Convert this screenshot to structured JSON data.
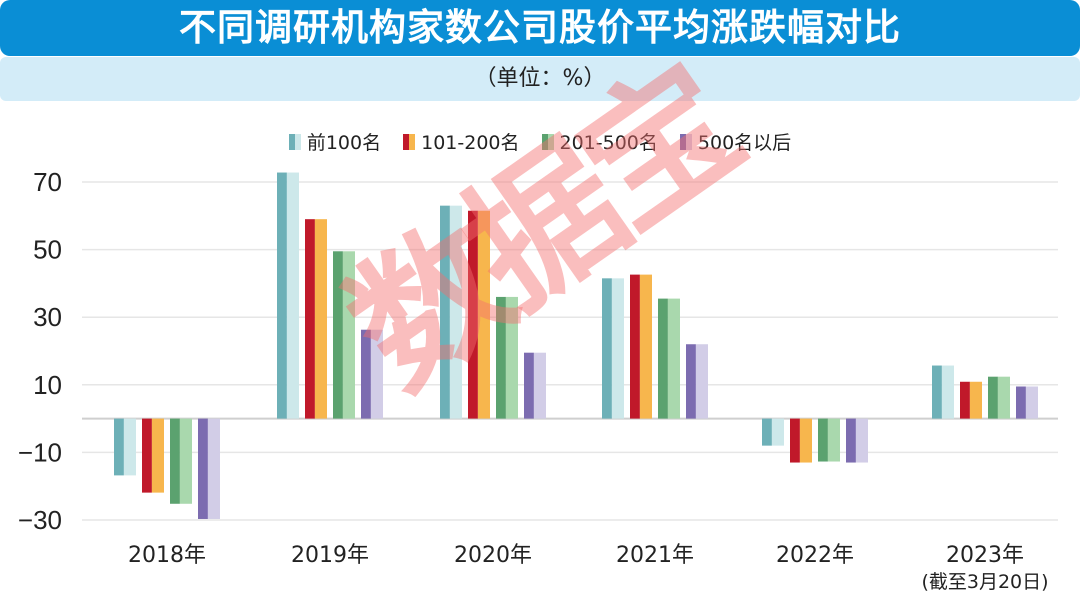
{
  "header": {
    "title": "不同调研机构家数公司股价平均涨跌幅对比",
    "unit": "（单位：%）"
  },
  "watermark": "数据宝",
  "chart_data": {
    "type": "bar",
    "title": "不同调研机构家数公司股价平均涨跌幅对比",
    "subtitle": "（单位：%）",
    "categories": [
      "2018年",
      "2019年",
      "2020年",
      "2021年",
      "2022年",
      "2023年"
    ],
    "category_notes": [
      "",
      "",
      "",
      "",
      "",
      "(截至3月20日)"
    ],
    "series": [
      {
        "name": "前100名",
        "values": [
          -16.8,
          72.8,
          63.0,
          41.5,
          -8.0,
          15.7
        ],
        "colors": [
          "#6db0b7",
          "#cde8ea"
        ]
      },
      {
        "name": "101-200名",
        "values": [
          -21.9,
          59.0,
          61.5,
          42.6,
          -13.0,
          10.9
        ],
        "colors": [
          "#c0192a",
          "#f7b64d"
        ]
      },
      {
        "name": "201-500名",
        "values": [
          -25.2,
          49.5,
          36.0,
          35.5,
          -12.7,
          12.4
        ],
        "colors": [
          "#5ba26f",
          "#a9d8ad"
        ]
      },
      {
        "name": "500名以后",
        "values": [
          -29.7,
          26.3,
          19.5,
          22.0,
          -13.0,
          9.5
        ],
        "colors": [
          "#7c6cb0",
          "#d2cde7"
        ]
      }
    ],
    "yticks": [
      70,
      50,
      30,
      10,
      -10,
      -30
    ],
    "ylim": [
      -30,
      70
    ],
    "grid": true,
    "legend": "top-center",
    "xlabel": "",
    "ylabel": ""
  }
}
